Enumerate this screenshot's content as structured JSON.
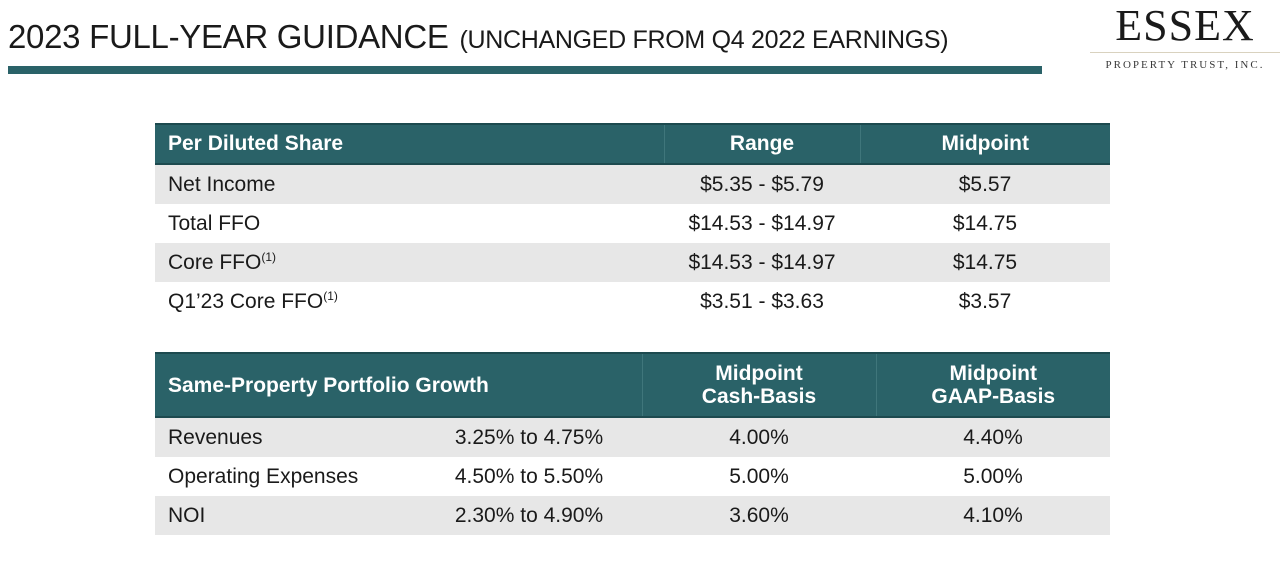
{
  "header": {
    "title": "2023 FULL-YEAR GUIDANCE",
    "subtitle": "(UNCHANGED FROM Q4 2022 EARNINGS)"
  },
  "logo": {
    "name": "ESSEX",
    "tagline": "PROPERTY TRUST, INC."
  },
  "colors": {
    "accent": "#2a6268",
    "row_shade": "#e7e7e7"
  },
  "per_share_table": {
    "headers": [
      "Per Diluted Share",
      "Range",
      "Midpoint"
    ],
    "rows": [
      {
        "label": "Net Income",
        "note": "",
        "range": "$5.35 - $5.79",
        "midpoint": "$5.57"
      },
      {
        "label": "Total FFO",
        "note": "",
        "range": "$14.53 - $14.97",
        "midpoint": "$14.75"
      },
      {
        "label": "Core FFO",
        "note": "(1)",
        "range": "$14.53 - $14.97",
        "midpoint": "$14.75"
      },
      {
        "label": "Q1’23 Core FFO",
        "note": "(1)",
        "range": "$3.51 - $3.63",
        "midpoint": "$3.57"
      }
    ]
  },
  "portfolio_table": {
    "headers": {
      "label": "Same-Property Portfolio Growth",
      "cash_line1": "Midpoint",
      "cash_line2": "Cash-Basis",
      "gaap_line1": "Midpoint",
      "gaap_line2": "GAAP-Basis"
    },
    "rows": [
      {
        "label": "Revenues",
        "range": "3.25% to 4.75%",
        "cash": "4.00%",
        "gaap": "4.40%"
      },
      {
        "label": "Operating Expenses",
        "range": "4.50% to 5.50%",
        "cash": "5.00%",
        "gaap": "5.00%"
      },
      {
        "label": "NOI",
        "range": "2.30% to 4.90%",
        "cash": "3.60%",
        "gaap": "4.10%"
      }
    ]
  }
}
